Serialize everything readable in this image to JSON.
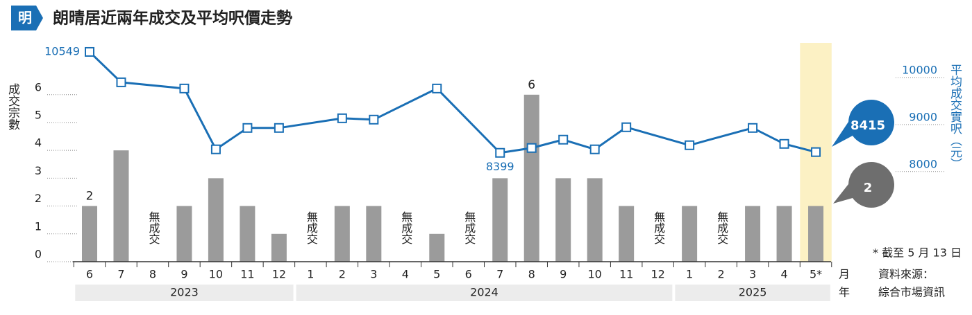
{
  "chart_data": {
    "type": "bar",
    "title": "朗晴居近兩年成交及平均呎價走勢",
    "logo": "明",
    "ylabel": "成交宗數",
    "y2label": "平均成交實呎（元）",
    "x_unit": "月",
    "group_unit": "年",
    "categories": [
      "6",
      "7",
      "8",
      "9",
      "10",
      "11",
      "12",
      "1",
      "2",
      "3",
      "4",
      "5",
      "6",
      "7",
      "8",
      "9",
      "10",
      "11",
      "12",
      "1",
      "2",
      "3",
      "4",
      "5*"
    ],
    "year_groups": [
      "2023",
      "2024",
      "2025"
    ],
    "ylim": [
      0,
      7.86
    ],
    "yticks": [
      0,
      1,
      2,
      3,
      4,
      5,
      6
    ],
    "y2lim": [
      6080,
      10740
    ],
    "y2ticks": [
      8000,
      9000,
      10000
    ],
    "highlight_index": 23,
    "footnote": "* 截至 5 月 13 日",
    "source": [
      "資料來源：",
      "綜合市場資訊"
    ],
    "series": [
      {
        "type": "bar",
        "color": "#9b9b9b",
        "values": [
          2,
          4,
          0,
          2,
          3,
          2,
          1,
          0,
          2,
          2,
          0,
          1,
          0,
          3,
          6,
          3,
          3,
          2,
          0,
          2,
          0,
          2,
          2,
          2
        ],
        "value_labels": [
          "2",
          null,
          "無成交",
          null,
          null,
          null,
          null,
          "無成交",
          null,
          null,
          "無成交",
          null,
          "無成交",
          null,
          "6",
          null,
          null,
          null,
          "無成交",
          null,
          "無成交",
          null,
          null,
          null
        ]
      },
      {
        "type": "line",
        "axis": "y2",
        "color": "#1a6fb5",
        "values": [
          10549,
          9901,
          null,
          9769,
          8473,
          8929,
          8929,
          null,
          9135,
          9106,
          null,
          9769,
          null,
          8399,
          8502,
          8679,
          8473,
          8944,
          null,
          8561,
          null,
          8929,
          8590,
          8415
        ],
        "value_labels": [
          "10549",
          null,
          null,
          null,
          null,
          null,
          null,
          null,
          null,
          null,
          null,
          null,
          null,
          "8399",
          null,
          null,
          null,
          null,
          null,
          null,
          null,
          null,
          null,
          null
        ]
      }
    ]
  }
}
